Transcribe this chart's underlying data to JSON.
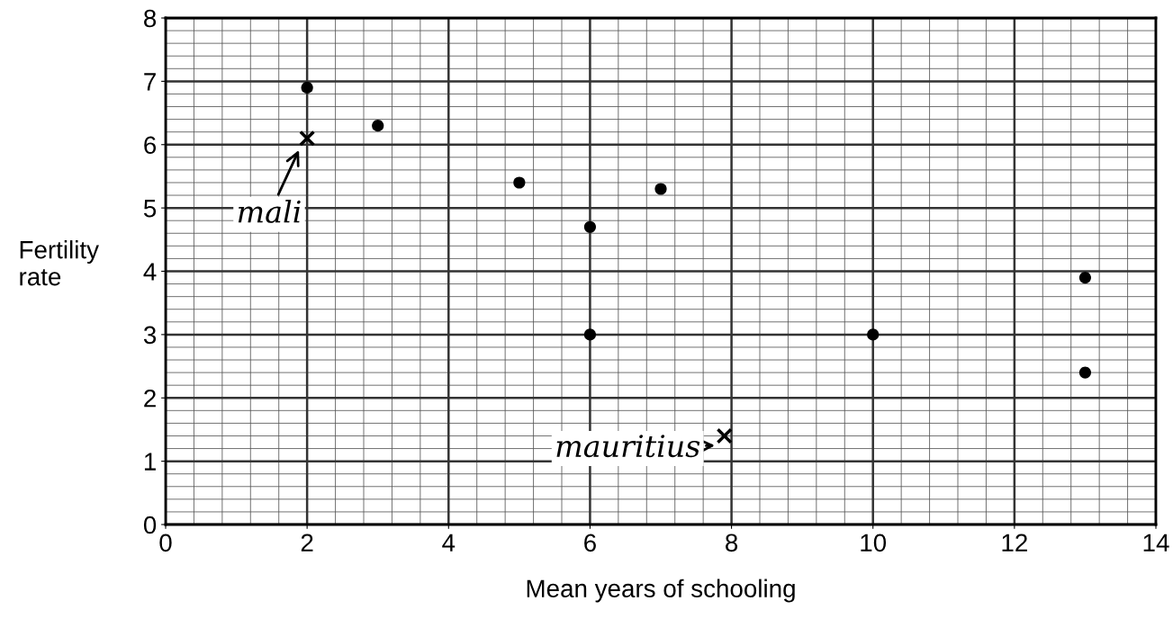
{
  "chart_data": {
    "type": "scatter",
    "xlabel": "Mean years of schooling",
    "ylabel": "Fertility rate",
    "series": [
      {
        "color": "#000000",
        "marker": "circle",
        "x": [
          2,
          3,
          5,
          6,
          7,
          6,
          10,
          13,
          13
        ],
        "values": [
          6.9,
          6.3,
          5.4,
          4.7,
          5.3,
          3.0,
          3.0,
          3.9,
          2.4
        ]
      },
      {
        "color": "#000000",
        "marker": "cross",
        "x": [
          2,
          7.9
        ],
        "values": [
          6.1,
          1.4
        ]
      }
    ],
    "annotations": [
      {
        "text": "mali",
        "x": 2,
        "y": 6.1
      },
      {
        "text": "mauritius",
        "x": 7.9,
        "y": 1.4
      }
    ],
    "xlim": [
      0,
      14
    ],
    "ylim": [
      0,
      8
    ],
    "xticks": [
      0,
      2,
      4,
      6,
      8,
      10,
      12,
      14
    ],
    "yticks": [
      0,
      1,
      2,
      3,
      4,
      5,
      6,
      7,
      8
    ],
    "grid": true
  }
}
